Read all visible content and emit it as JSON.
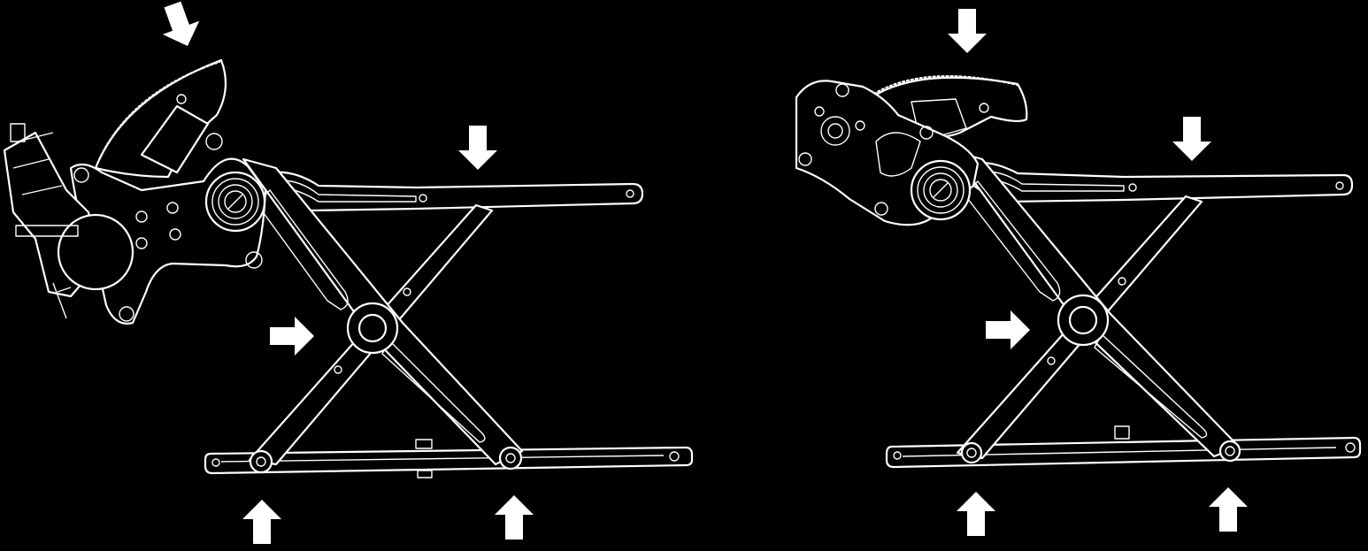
{
  "diagram": {
    "background": "#000000",
    "line_color": "#ffffff",
    "views": [
      {
        "id": "left",
        "components": [
          "regulator-motor",
          "sector-gear",
          "mounting-plate",
          "upper-rail",
          "lower-rail",
          "scissor-arms"
        ]
      },
      {
        "id": "right",
        "components": [
          "sector-gear",
          "mounting-plate",
          "upper-rail",
          "lower-rail",
          "scissor-arms"
        ]
      }
    ],
    "arrow_icons": [
      "arrow-down-icon",
      "arrow-right-icon",
      "arrow-up-icon"
    ]
  }
}
